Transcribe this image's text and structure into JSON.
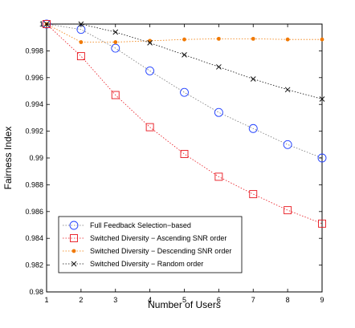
{
  "chart_data": {
    "type": "line",
    "title": "",
    "xlabel": "Number of Users",
    "ylabel": "Fairness Index",
    "xlim": [
      1,
      9
    ],
    "ylim": [
      0.98,
      1.0
    ],
    "x_ticks": [
      1,
      2,
      3,
      4,
      5,
      6,
      7,
      8,
      9
    ],
    "x_tick_labels": [
      "1",
      "2",
      "3",
      "4",
      "5",
      "6",
      "7",
      "8",
      "9"
    ],
    "y_ticks": [
      0.98,
      0.982,
      0.984,
      0.986,
      0.988,
      0.99,
      0.992,
      0.994,
      0.996,
      0.998,
      1.0
    ],
    "y_tick_labels": [
      "0.98",
      "0.982",
      "0.984",
      "0.986",
      "0.988",
      "0.99",
      "0.992",
      "0.994",
      "0.996",
      "0.998",
      "1"
    ],
    "grid": false,
    "legend_position": "lower-left",
    "x": [
      1,
      2,
      3,
      4,
      5,
      6,
      7,
      8,
      9
    ],
    "series": [
      {
        "name": "Full Feedback Selection−based",
        "marker": "circle",
        "color": "#1f3fff",
        "line_color": "#777777",
        "values": [
          1.0,
          0.9996,
          0.9982,
          0.9965,
          0.9949,
          0.9934,
          0.9922,
          0.991,
          0.99
        ]
      },
      {
        "name": "Switched Diversity − Ascending SNR order",
        "marker": "square",
        "color": "#e8141c",
        "line_color": "#e8141c",
        "values": [
          1.0,
          0.9976,
          0.9947,
          0.9923,
          0.9903,
          0.9886,
          0.9873,
          0.9861,
          0.9851
        ]
      },
      {
        "name": "Switched Diversity − Descending SNR order",
        "marker": "dot",
        "color": "#f07800",
        "line_color": "#f07800",
        "values": [
          1.0,
          0.99865,
          0.99865,
          0.99875,
          0.99885,
          0.9989,
          0.9989,
          0.99885,
          0.99885
        ]
      },
      {
        "name": "Switched Diversity − Random order",
        "marker": "x",
        "color": "#111111",
        "line_color": "#111111",
        "values": [
          1.0,
          1.0,
          0.9994,
          0.9986,
          0.9977,
          0.9968,
          0.9959,
          0.9951,
          0.9944
        ]
      }
    ]
  }
}
